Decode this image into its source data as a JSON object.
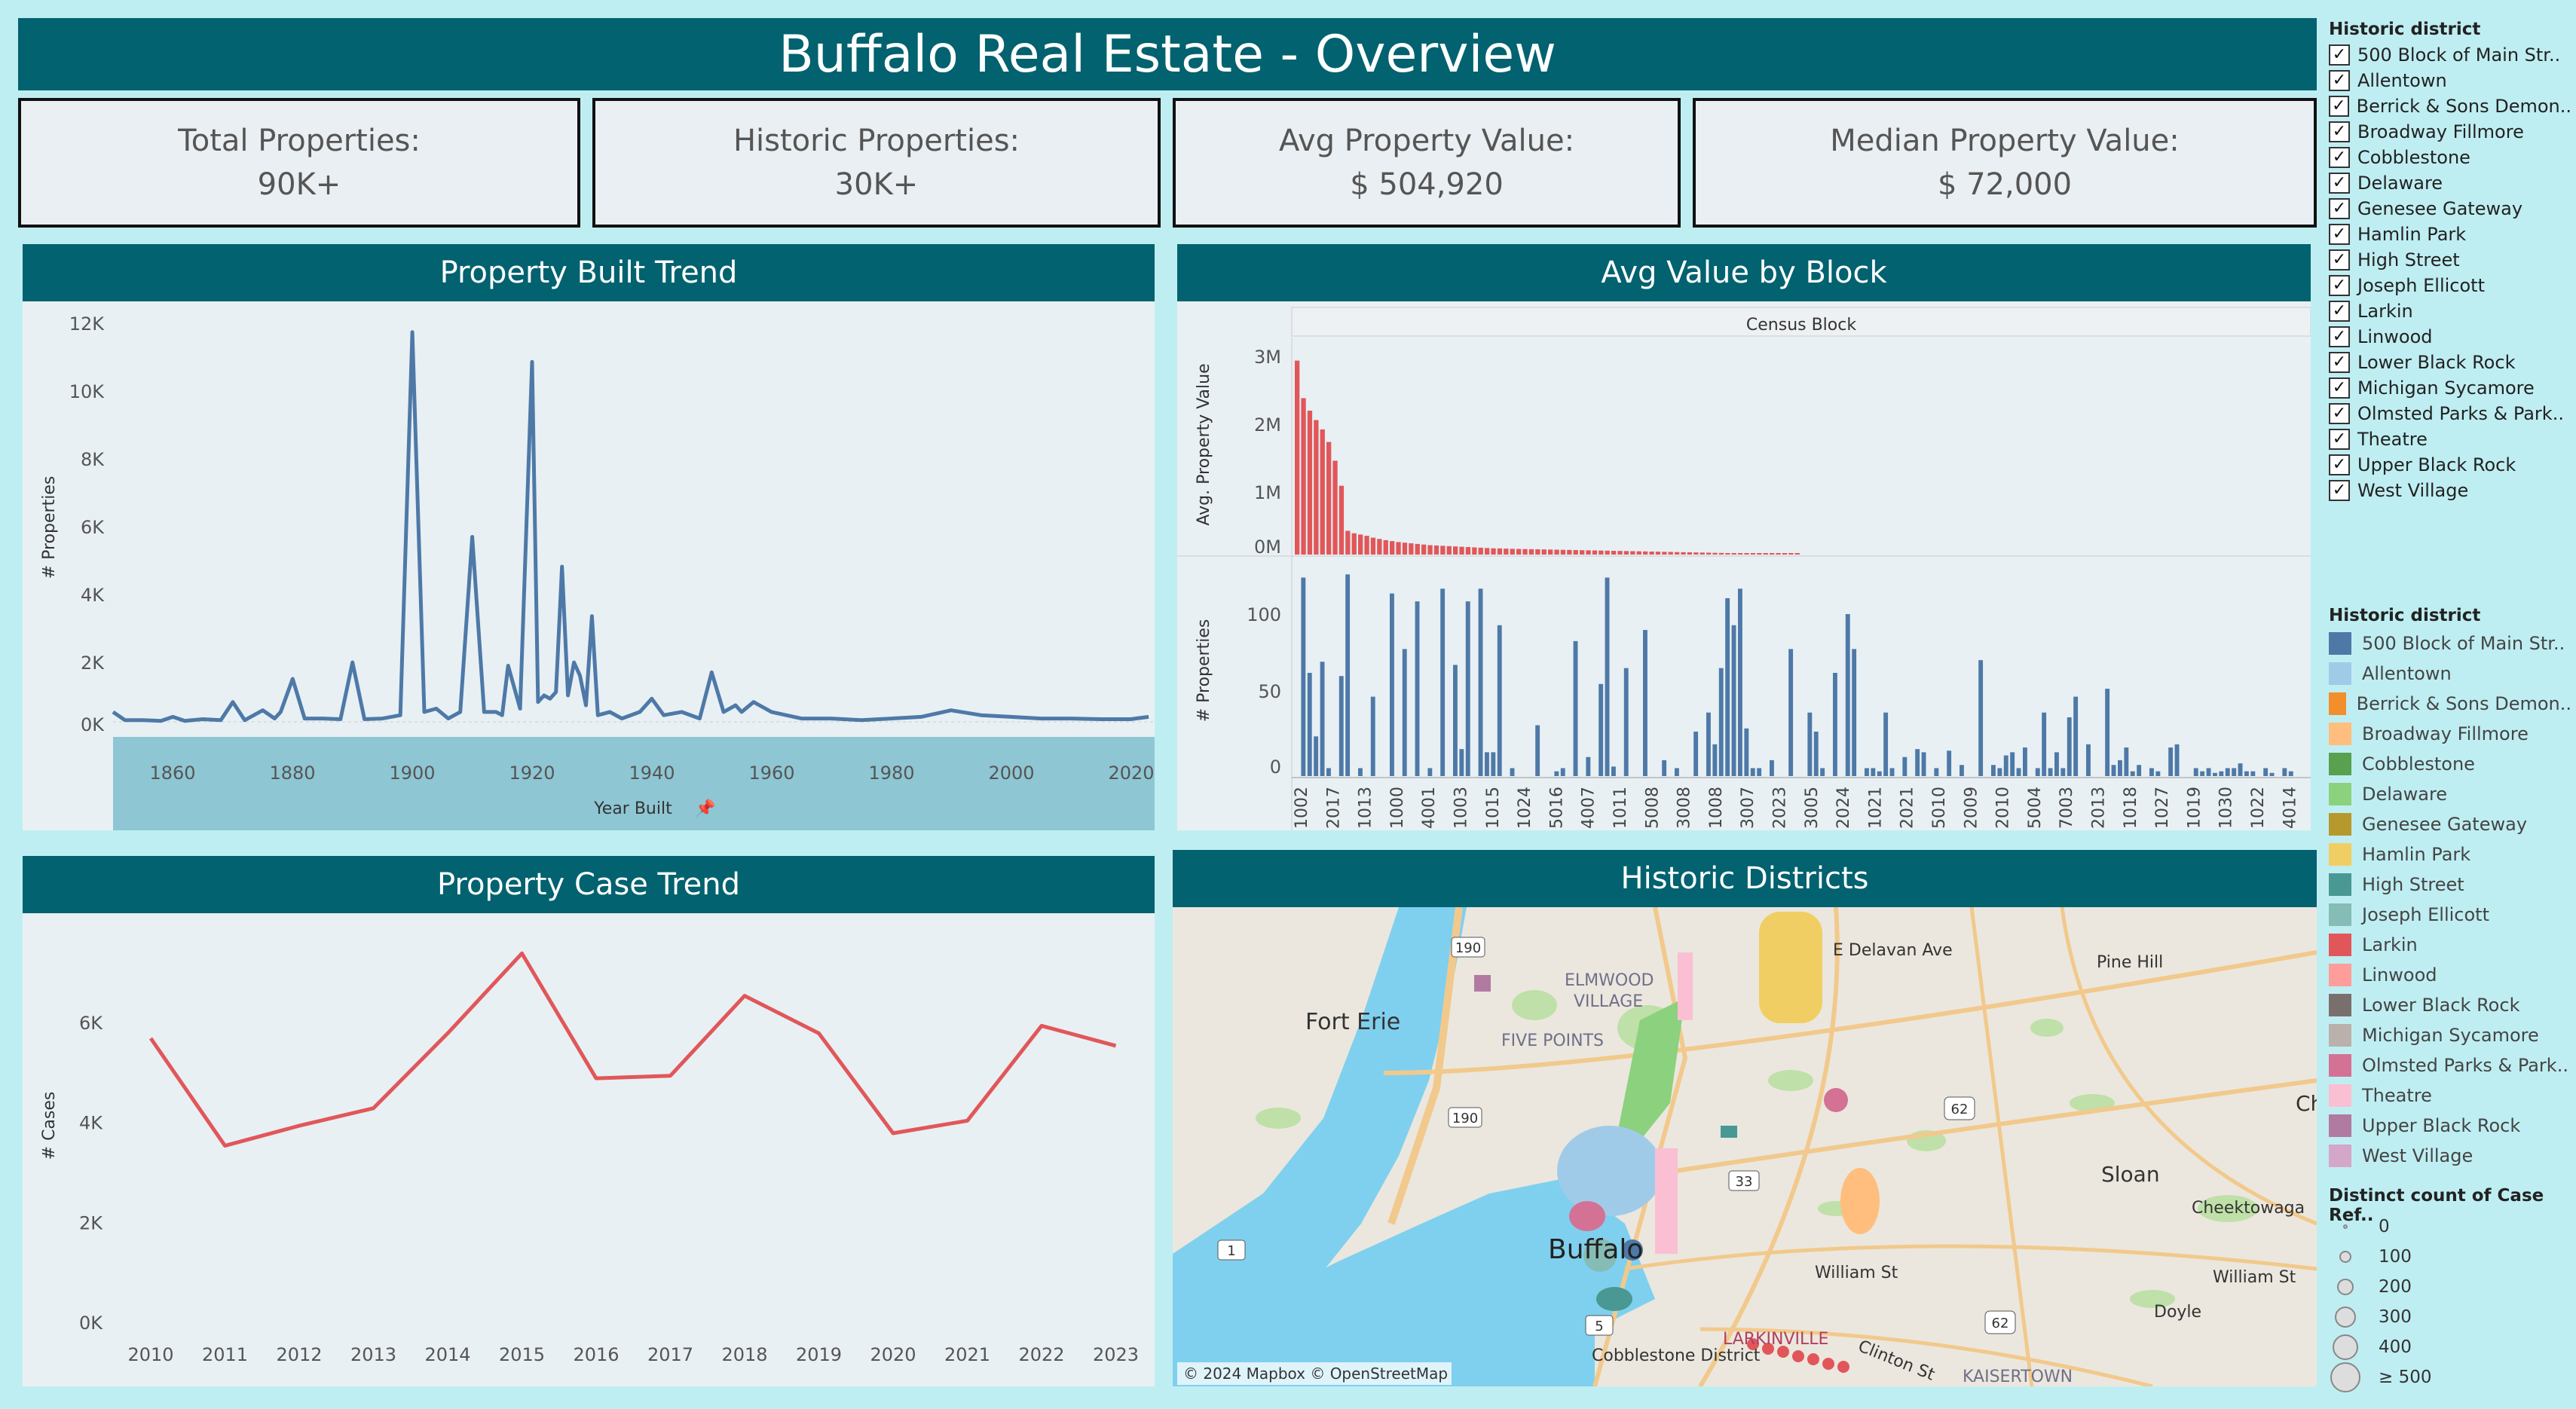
{
  "header": {
    "title": "Buffalo Real Estate - Overview"
  },
  "kpis": [
    {
      "label": "Total Properties:",
      "value": "90K+"
    },
    {
      "label": "Historic Properties:",
      "value": "30K+"
    },
    {
      "label": "Avg Property Value:",
      "value": "$ 504,920"
    },
    {
      "label": "Median Property Value:",
      "value": "$ 72,000"
    }
  ],
  "built_trend": {
    "title": "Property Built Trend",
    "ylabel": "# Properties",
    "xlabel": "Year Built",
    "y_ticks": [
      "12K",
      "10K",
      "8K",
      "6K",
      "4K",
      "2K",
      "0K"
    ],
    "x_ticks": [
      "1860",
      "1880",
      "1900",
      "1920",
      "1940",
      "1960",
      "1980",
      "2000",
      "2020"
    ]
  },
  "value_by_block": {
    "title": "Avg Value by Block",
    "header": "Census Block",
    "ylabel_top": "Avg. Property Value",
    "ylabel_bottom": "# Properties",
    "top_ticks": [
      "3M",
      "2M",
      "1M",
      "0M"
    ],
    "bottom_ticks": [
      "100",
      "50",
      "0"
    ],
    "block_labels": [
      "1002",
      "2017",
      "1013",
      "1000",
      "4001",
      "1003",
      "1015",
      "1024",
      "5016",
      "4007",
      "1011",
      "5008",
      "3008",
      "1008",
      "3007",
      "2023",
      "3005",
      "2024",
      "1021",
      "2021",
      "5010",
      "2009",
      "2010",
      "5004",
      "7003",
      "2013",
      "1018",
      "1027",
      "1019",
      "1030",
      "1022",
      "4014"
    ]
  },
  "case_trend": {
    "title": "Property Case Trend",
    "ylabel": "# Cases",
    "y_ticks": [
      "6K",
      "4K",
      "2K",
      "0K"
    ]
  },
  "map": {
    "title": "Historic Districts",
    "attribution": "© 2024 Mapbox © OpenStreetMap",
    "labels": [
      {
        "text": "Fort Erie",
        "size": 30,
        "color": "#333"
      },
      {
        "text": "ELMWOOD",
        "size": 22,
        "color": "#6f6f8a"
      },
      {
        "text": "VILLAGE",
        "size": 22,
        "color": "#6f6f8a"
      },
      {
        "text": "FIVE POINTS",
        "size": 22,
        "color": "#6f6f8a"
      },
      {
        "text": "E Delavan Ave",
        "size": 22,
        "color": "#333"
      },
      {
        "text": "Pine Hill",
        "size": 22,
        "color": "#333"
      },
      {
        "text": "Buffalo",
        "size": 36,
        "color": "#222"
      },
      {
        "text": "William St",
        "size": 22,
        "color": "#333"
      },
      {
        "text": "Sloan",
        "size": 28,
        "color": "#333"
      },
      {
        "text": "Cheektowaga",
        "size": 22,
        "color": "#333"
      },
      {
        "text": "William St",
        "size": 22,
        "color": "#333"
      },
      {
        "text": "Doyle",
        "size": 22,
        "color": "#333"
      },
      {
        "text": "LARKINVILLE",
        "size": 22,
        "color": "#b04060"
      },
      {
        "text": "Clinton St",
        "size": 22,
        "color": "#333"
      },
      {
        "text": "Cobblestone District",
        "size": 22,
        "color": "#333"
      },
      {
        "text": "KAISERTOWN",
        "size": 22,
        "color": "#6f6f8a"
      },
      {
        "text": "Ch",
        "size": 28,
        "color": "#333"
      }
    ],
    "shields": [
      "190",
      "190",
      "33",
      "62",
      "1",
      "5",
      "62"
    ]
  },
  "filter": {
    "title": "Historic district",
    "check_mark": "✓",
    "items": [
      "500 Block of Main Str..",
      "Allentown",
      "Berrick & Sons Demon..",
      "Broadway Fillmore",
      "Cobblestone",
      "Delaware",
      "Genesee Gateway",
      "Hamlin Park",
      "High Street",
      "Joseph Ellicott",
      "Larkin",
      "Linwood",
      "Lower Black Rock",
      "Michigan Sycamore",
      "Olmsted Parks & Park..",
      "Theatre",
      "Upper Black Rock",
      "West Village"
    ]
  },
  "legend": {
    "title": "Historic district",
    "items": [
      {
        "label": "500 Block of Main Str..",
        "color": "#4e79a7"
      },
      {
        "label": "Allentown",
        "color": "#a0cbe8"
      },
      {
        "label": "Berrick & Sons Demon..",
        "color": "#f28e2b"
      },
      {
        "label": "Broadway Fillmore",
        "color": "#ffbe7d"
      },
      {
        "label": "Cobblestone",
        "color": "#59a14f"
      },
      {
        "label": "Delaware",
        "color": "#8cd17d"
      },
      {
        "label": "Genesee Gateway",
        "color": "#b6992d"
      },
      {
        "label": "Hamlin Park",
        "color": "#f1ce63"
      },
      {
        "label": "High Street",
        "color": "#499894"
      },
      {
        "label": "Joseph Ellicott",
        "color": "#86bcb6"
      },
      {
        "label": "Larkin",
        "color": "#e15759"
      },
      {
        "label": "Linwood",
        "color": "#ff9d9a"
      },
      {
        "label": "Lower Black Rock",
        "color": "#79706e"
      },
      {
        "label": "Michigan Sycamore",
        "color": "#bab0ac"
      },
      {
        "label": "Olmsted Parks & Park..",
        "color": "#d37295"
      },
      {
        "label": "Theatre",
        "color": "#fabfd2"
      },
      {
        "label": "Upper Black Rock",
        "color": "#b07aa1"
      },
      {
        "label": "West Village",
        "color": "#d4a6c8"
      }
    ]
  },
  "size_legend": {
    "title": "Distinct count of Case Ref..",
    "items": [
      "0",
      "100",
      "200",
      "300",
      "400",
      "≥ 500"
    ]
  },
  "chart_data": [
    {
      "type": "line",
      "title": "Property Built Trend",
      "xlabel": "Year Built",
      "ylabel": "# Properties",
      "xlim": [
        1850,
        2024
      ],
      "ylim": [
        0,
        12000
      ],
      "x": [
        1850,
        1852,
        1855,
        1858,
        1860,
        1862,
        1865,
        1868,
        1870,
        1872,
        1875,
        1877,
        1878,
        1880,
        1882,
        1885,
        1888,
        1890,
        1892,
        1895,
        1898,
        1900,
        1902,
        1904,
        1906,
        1908,
        1910,
        1912,
        1914,
        1915,
        1916,
        1918,
        1920,
        1921,
        1922,
        1923,
        1924,
        1925,
        1926,
        1927,
        1928,
        1929,
        1930,
        1931,
        1933,
        1935,
        1938,
        1940,
        1942,
        1945,
        1948,
        1950,
        1952,
        1954,
        1955,
        1957,
        1960,
        1965,
        1970,
        1975,
        1980,
        1985,
        1990,
        1995,
        2000,
        2005,
        2010,
        2015,
        2020,
        2023
      ],
      "series": [
        {
          "color": "#4e79a7",
          "values": [
            300,
            50,
            50,
            30,
            150,
            30,
            80,
            50,
            600,
            50,
            350,
            100,
            300,
            1300,
            100,
            100,
            80,
            1800,
            80,
            100,
            200,
            11800,
            300,
            400,
            100,
            300,
            5600,
            300,
            300,
            200,
            1700,
            400,
            10900,
            600,
            800,
            700,
            900,
            4700,
            800,
            1800,
            1400,
            500,
            3200,
            200,
            300,
            100,
            300,
            700,
            200,
            300,
            100,
            1500,
            300,
            500,
            300,
            600,
            300,
            100,
            100,
            50,
            100,
            150,
            350,
            200,
            150,
            100,
            100,
            80,
            80,
            150
          ]
        }
      ]
    },
    {
      "type": "bar",
      "title": "Avg Value by Block",
      "xlabel": "Census Block",
      "ylabel": "Avg. Property Value",
      "ylim": [
        0,
        3300000
      ],
      "series": [
        {
          "color": "#e15759",
          "values": [
            3100000,
            2500000,
            2300000,
            2150000,
            2000000,
            1800000,
            1500000,
            1100000,
            380000,
            340000,
            320000,
            300000,
            270000,
            250000,
            230000,
            215000,
            200000,
            190000,
            180000,
            170000,
            160000,
            150000,
            145000,
            140000,
            135000,
            130000,
            125000,
            120000,
            115000,
            110000,
            105000,
            100000,
            98000,
            95000,
            92000,
            90000,
            88000,
            86000,
            84000,
            82000,
            80000,
            78000,
            76000,
            74000,
            72000,
            70000,
            68000,
            66000,
            64000,
            62000,
            60000,
            58000,
            56000,
            54000,
            52000,
            50000,
            48000,
            46000,
            44000,
            42000,
            40000,
            38000,
            36000,
            34000,
            32000,
            30000,
            28000,
            26000,
            24000,
            22000,
            20000,
            18000,
            16000,
            14000,
            12000,
            10000,
            8000,
            6000,
            4000,
            3000
          ]
        }
      ]
    },
    {
      "type": "bar",
      "title": "Avg Value by Block",
      "xlabel": "Census Block",
      "ylabel": "# Properties",
      "ylim": [
        0,
        130
      ],
      "series": [
        {
          "color": "#4e79a7",
          "values": [
            0,
            125,
            65,
            25,
            72,
            5,
            0,
            63,
            127,
            0,
            5,
            0,
            50,
            0,
            0,
            115,
            0,
            80,
            0,
            110,
            0,
            5,
            0,
            118,
            0,
            70,
            17,
            110,
            0,
            118,
            15,
            15,
            95,
            0,
            5,
            0,
            0,
            0,
            32,
            0,
            0,
            3,
            5,
            0,
            85,
            0,
            12,
            0,
            58,
            125,
            6,
            0,
            68,
            0,
            0,
            92,
            0,
            0,
            10,
            0,
            5,
            0,
            0,
            28,
            0,
            40,
            20,
            68,
            112,
            95,
            118,
            30,
            5,
            5,
            0,
            10,
            0,
            0,
            80,
            0,
            0,
            40,
            28,
            5,
            0,
            65,
            0,
            102,
            80,
            0,
            5,
            5,
            3,
            40,
            5,
            0,
            12,
            0,
            17,
            15,
            0,
            5,
            0,
            16,
            0,
            7,
            0,
            0,
            73,
            0,
            7,
            5,
            13,
            15,
            5,
            18,
            0,
            5,
            40,
            5,
            15,
            5,
            37,
            50,
            0,
            20,
            0,
            0,
            55,
            7,
            10,
            18,
            3,
            7,
            0,
            5,
            3,
            0,
            18,
            20,
            0,
            0,
            5,
            3,
            5,
            2,
            3,
            5,
            5,
            8,
            3,
            3,
            0,
            5,
            2,
            0,
            5,
            3,
            0,
            0
          ]
        }
      ]
    },
    {
      "type": "line",
      "title": "Property Case Trend",
      "ylabel": "# Cases",
      "ylim": [
        0,
        7600
      ],
      "x": [
        "2010",
        "2011",
        "2012",
        "2013",
        "2014",
        "2015",
        "2016",
        "2017",
        "2018",
        "2019",
        "2020",
        "2021",
        "2022",
        "2023"
      ],
      "series": [
        {
          "color": "#e15759",
          "values": [
            5700,
            3550,
            3950,
            4300,
            5800,
            7400,
            4900,
            4950,
            6550,
            5800,
            3800,
            4050,
            5950,
            5550
          ]
        }
      ]
    }
  ]
}
